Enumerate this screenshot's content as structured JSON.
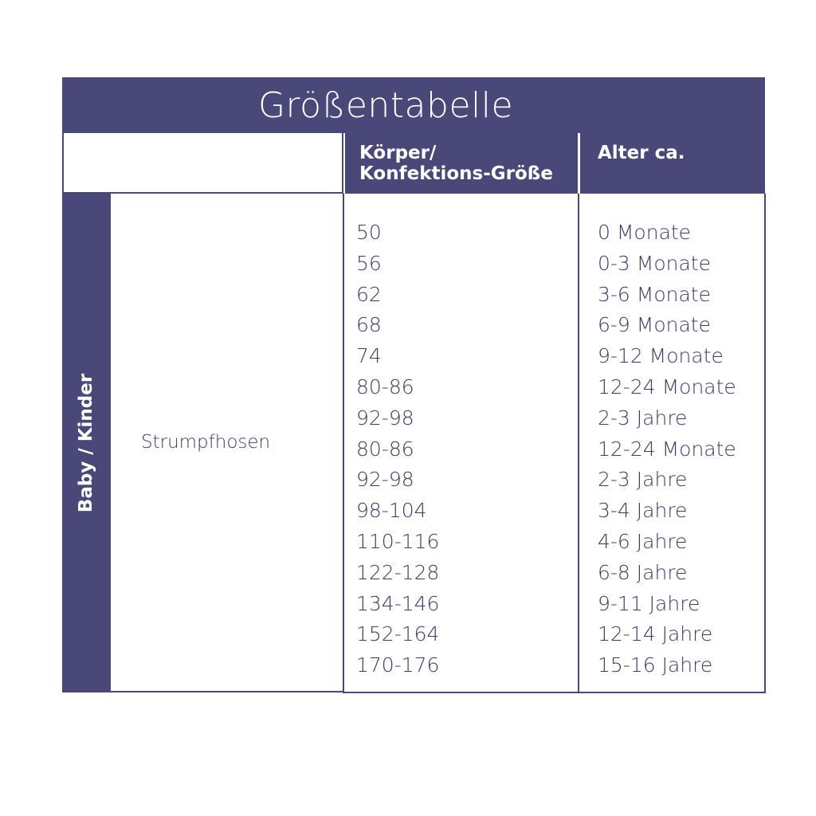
{
  "title": "Größentabelle",
  "headers": {
    "size": "Körper/\nKonfektions-Größe",
    "size_line1": "Körper/",
    "size_line2": "Konfektions-Größe",
    "age": "Alter ca."
  },
  "category": "Baby / Kinder",
  "product": "Strumpfhosen",
  "rows": [
    {
      "size": "50",
      "age": "0 Monate"
    },
    {
      "size": "56",
      "age": "0-3 Monate"
    },
    {
      "size": "62",
      "age": "3-6 Monate"
    },
    {
      "size": "68",
      "age": "6-9 Monate"
    },
    {
      "size": "74",
      "age": "9-12 Monate"
    },
    {
      "size": "80-86",
      "age": "12-24 Monate"
    },
    {
      "size": "92-98",
      "age": "2-3 Jahre"
    },
    {
      "size": "80-86",
      "age": "12-24 Monate"
    },
    {
      "size": "92-98",
      "age": "2-3 Jahre"
    },
    {
      "size": "98-104",
      "age": "3-4 Jahre"
    },
    {
      "size": "110-116",
      "age": "4-6 Jahre"
    },
    {
      "size": "122-128",
      "age": "6-8 Jahre"
    },
    {
      "size": "134-146",
      "age": "9-11 Jahre"
    },
    {
      "size": "152-164",
      "age": "12-14 Jahre"
    },
    {
      "size": "170-176",
      "age": "15-16 Jahre"
    }
  ],
  "colors": {
    "primary": "#4a4878",
    "text": "#3d3b66"
  }
}
